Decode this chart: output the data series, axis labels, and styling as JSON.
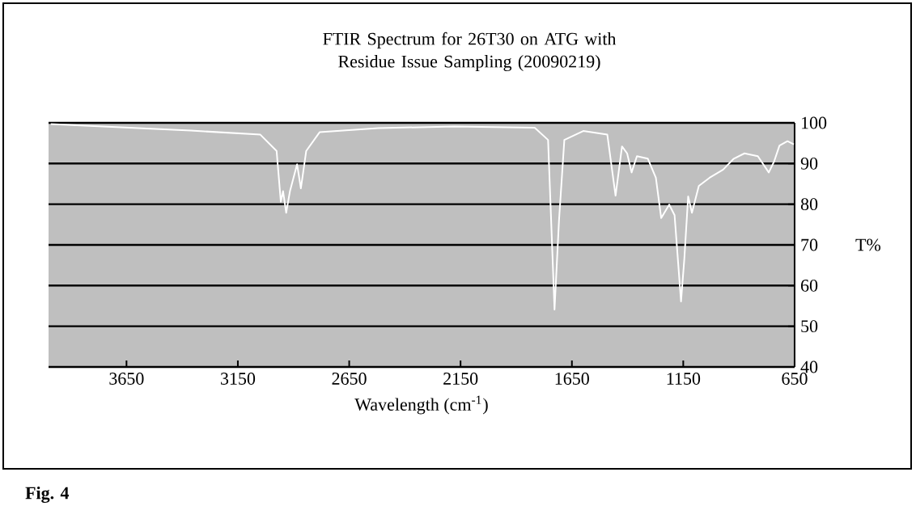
{
  "chart_data": {
    "type": "line",
    "title": "FTIR Spectrum for 26T30 on ATG with Residue Issue Sampling (20090219)",
    "xlabel": "Wavelength (cm$^{-1}$)",
    "ylabel": "T%",
    "annotations": [
      "**Fig. 4**"
    ],
    "xlim": [
      4000,
      650
    ],
    "xticks": [
      3650,
      3150,
      2650,
      2150,
      1650,
      1150,
      650
    ],
    "ylim": [
      40,
      100
    ],
    "yticks": [
      40,
      50,
      60,
      70,
      80,
      90,
      100
    ],
    "grid": "y",
    "marker": "none",
    "line_style": "solid",
    "series": [
      {
        "color": "#ffffff",
        "x": [
          3990,
          3362,
          3049,
          2976,
          2957,
          2947,
          2933,
          2916,
          2884,
          2867,
          2843,
          2783,
          2520,
          2179,
          1817,
          1757,
          1728,
          1708,
          1684,
          1599,
          1491,
          1454,
          1425,
          1402,
          1382,
          1358,
          1309,
          1273,
          1249,
          1213,
          1189,
          1160,
          1145,
          1128,
          1111,
          1080,
          1032,
          971,
          923,
          875,
          815,
          766,
          742,
          718,
          682,
          653
        ],
        "values": [
          99.7,
          98.1,
          97.1,
          93.1,
          80.6,
          83.2,
          77.9,
          83.2,
          89.8,
          83.9,
          93.1,
          97.7,
          98.7,
          99.1,
          98.8,
          95.8,
          54.1,
          75.9,
          95.8,
          98.0,
          97.1,
          82.1,
          94.2,
          92.5,
          87.8,
          91.8,
          91.2,
          86.5,
          76.6,
          79.9,
          77.3,
          56.1,
          66.7,
          81.9,
          77.9,
          84.5,
          86.5,
          88.5,
          91.2,
          92.5,
          91.8,
          87.8,
          90.5,
          94.4,
          95.5,
          94.7
        ]
      }
    ]
  }
}
